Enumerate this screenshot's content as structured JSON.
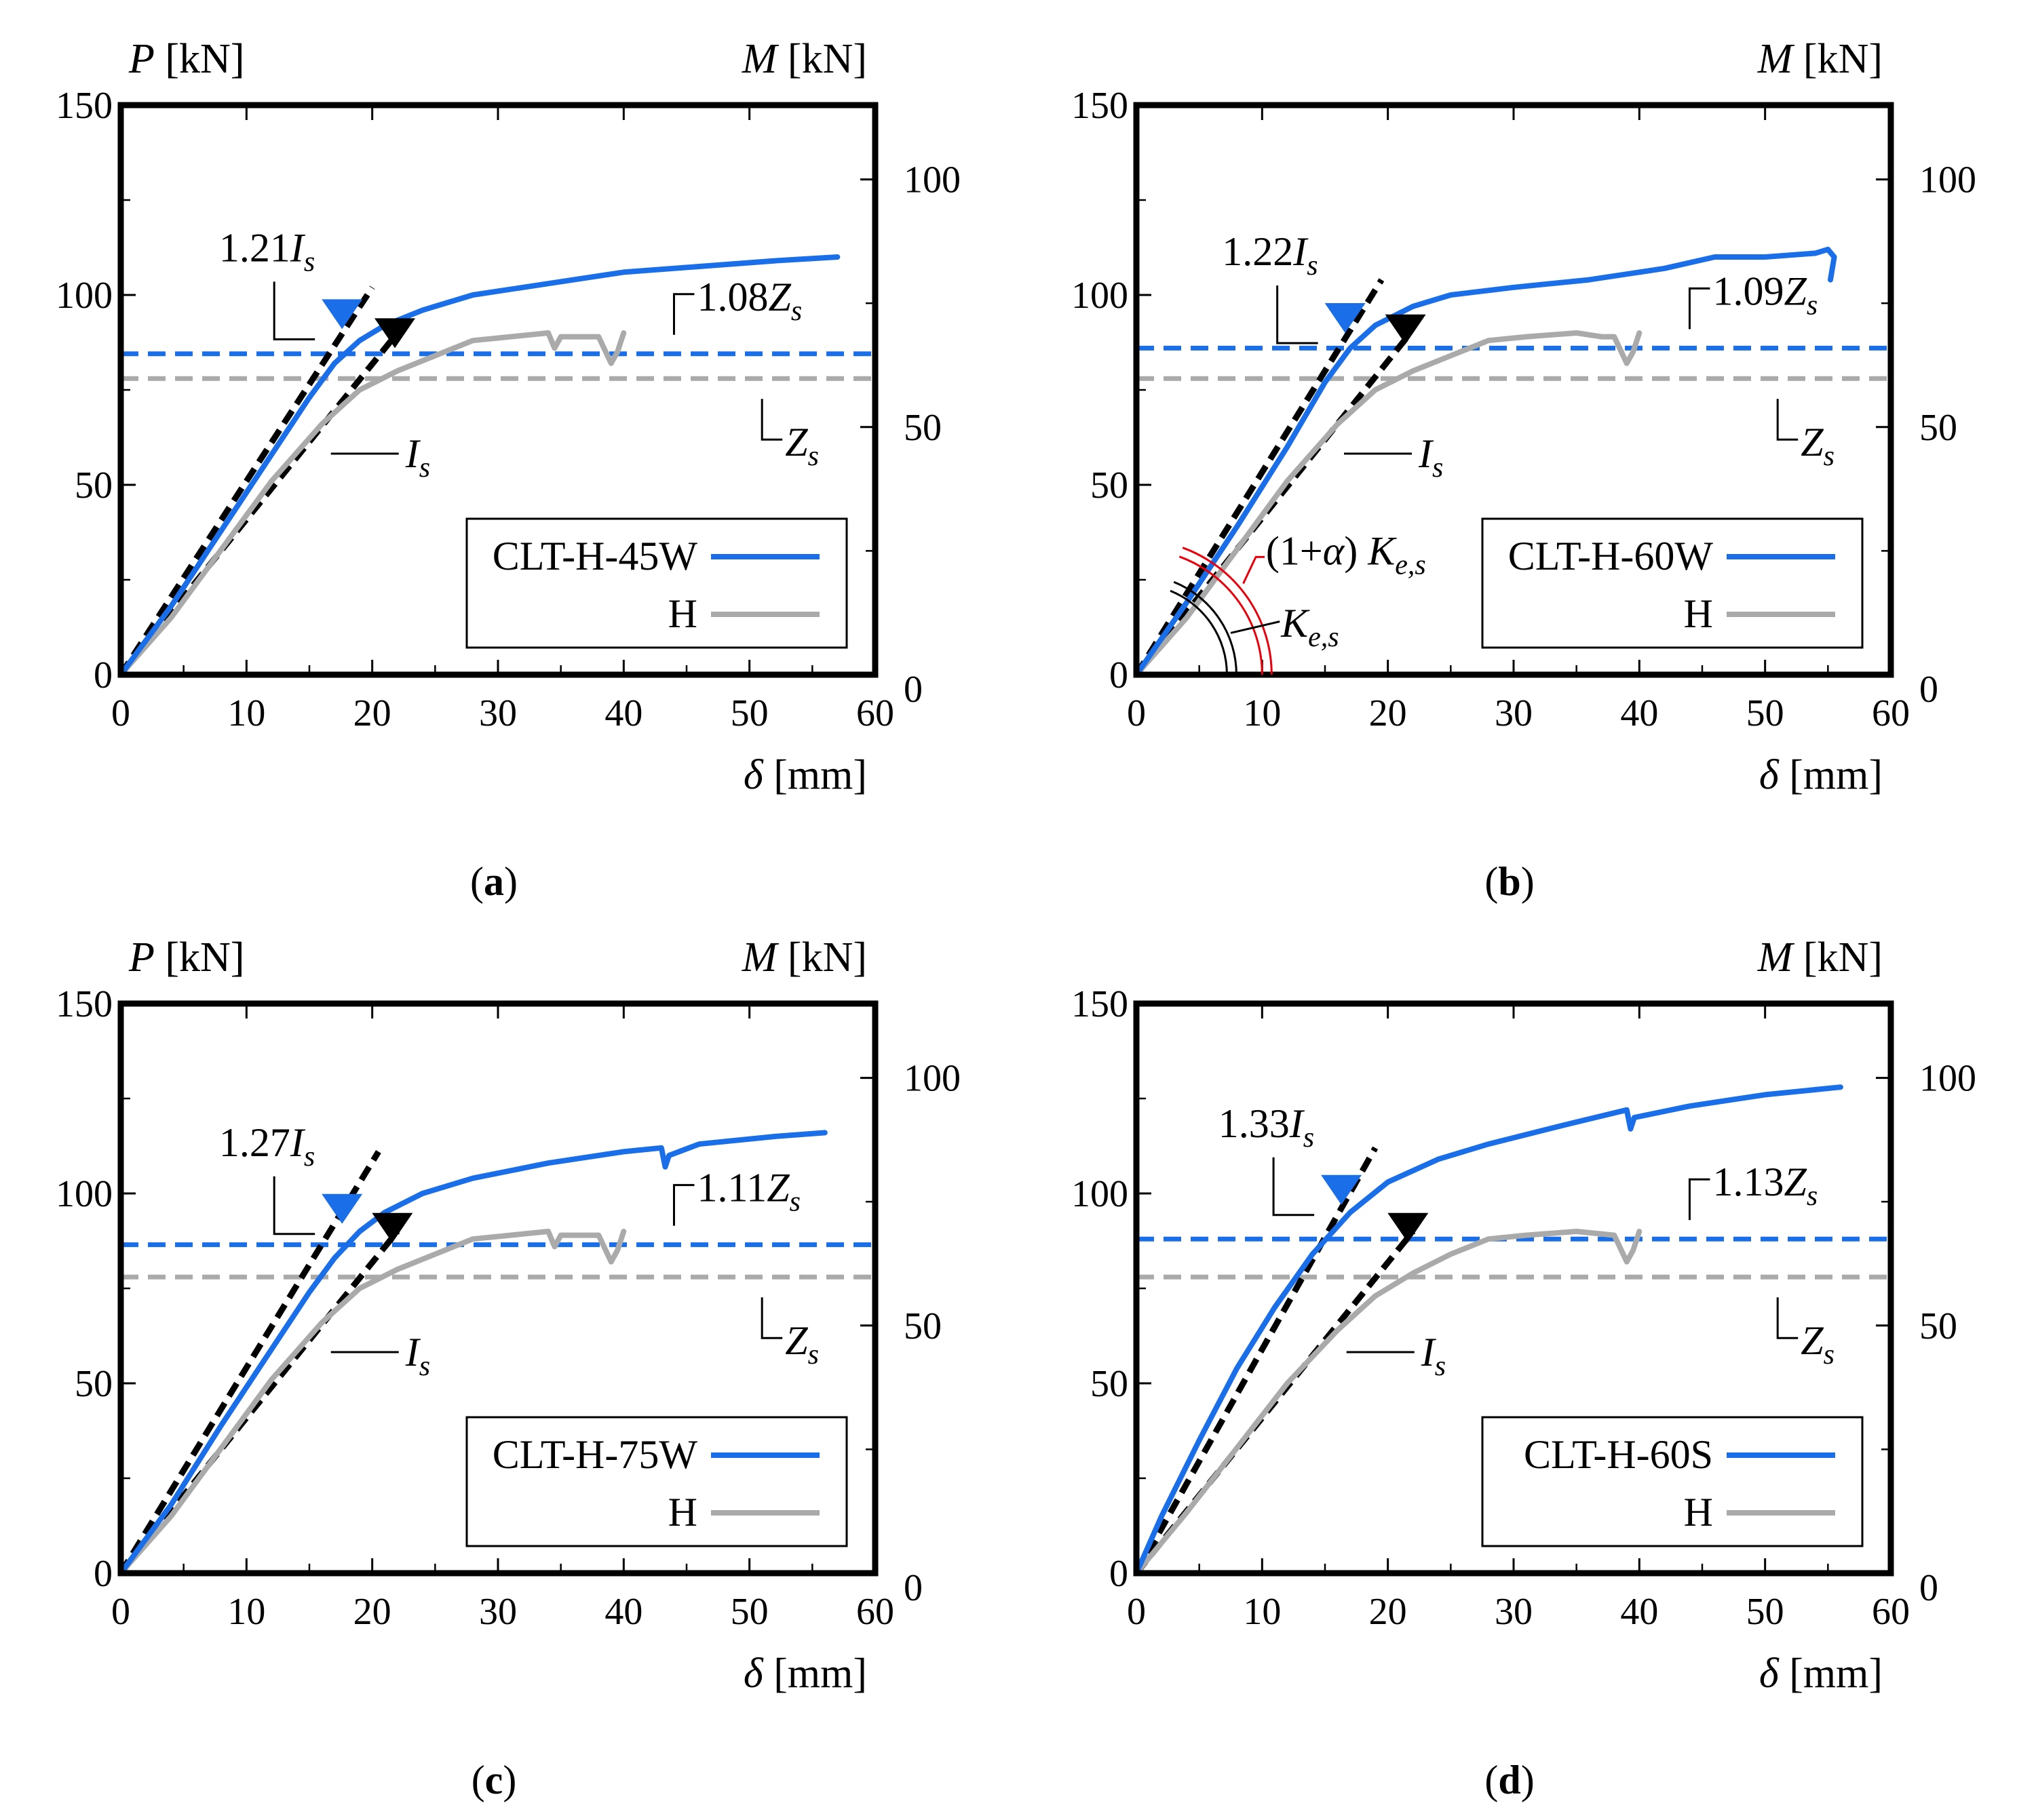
{
  "figure": {
    "panels_layout": "2x2 grid",
    "common": {
      "left_axis": {
        "symbol": "P",
        "unit": "[kN]",
        "range": [
          0,
          150
        ],
        "ticks": [
          0,
          50,
          100,
          150
        ]
      },
      "right_axis": {
        "symbol": "M",
        "unit": "[kN]",
        "range": [
          0,
          115
        ],
        "ticks": [
          0,
          50,
          100
        ]
      },
      "x_axis": {
        "symbol": "δ",
        "unit": "[mm]",
        "range": [
          0,
          60
        ],
        "ticks": [
          0,
          10,
          20,
          30,
          40,
          50,
          60
        ]
      }
    }
  },
  "colors": {
    "test": "#1a6fe8",
    "reference": "#aaaaaa",
    "stiffness": "#000000",
    "k_alpha": "#e8000b"
  },
  "chart_data": [
    {
      "type": "line",
      "panel_label": "(a)",
      "panel_letter": "a",
      "xlabel": "δ [mm]",
      "ylabel": "P [kN]",
      "y2label": "M [kN]",
      "xlim": [
        0,
        60
      ],
      "ylim": [
        0,
        150
      ],
      "y2lim": [
        0,
        115
      ],
      "legend": [
        "CLT-H-45W",
        "H"
      ],
      "legend_position": "lower-right",
      "series": [
        {
          "name": "CLT-H-45W",
          "color": "#1a6fe8",
          "x": [
            0,
            4,
            8,
            12,
            15,
            17,
            19,
            21,
            24,
            28,
            34,
            40,
            46,
            52,
            57
          ],
          "y": [
            0,
            18,
            38,
            58,
            73,
            82,
            88,
            92,
            96,
            100,
            103,
            106,
            107.5,
            109,
            110
          ]
        },
        {
          "name": "H",
          "color": "#aaaaaa",
          "x": [
            0,
            4,
            8,
            12,
            16,
            19,
            22,
            25,
            28,
            31,
            34,
            34.5,
            35,
            38,
            39,
            39.5,
            40
          ],
          "y": [
            0,
            15,
            33,
            51,
            66,
            75,
            80,
            84,
            88,
            89,
            90,
            86,
            89,
            89,
            82,
            85,
            90
          ]
        }
      ],
      "stiffness_lines": [
        {
          "name": "1.21Is",
          "x": [
            0,
            20
          ],
          "y": [
            0,
            102
          ]
        },
        {
          "name": "Is",
          "x": [
            0,
            22
          ],
          "y": [
            0,
            90
          ]
        }
      ],
      "horizontal_lines": [
        {
          "name": "1.08Zs",
          "y": 84.5
        },
        {
          "name": "Zs",
          "y": 78
        }
      ],
      "markers": [
        {
          "color": "blue",
          "x": 17.6,
          "y": 91
        },
        {
          "color": "black",
          "x": 21.8,
          "y": 86
        }
      ],
      "annotations": {
        "test_stiffness": "1.21",
        "test_stiffness_label": "I",
        "ref_stiffness_label": "I",
        "test_strength": "1.08Z",
        "ref_strength": "Z",
        "subscript": "s"
      }
    },
    {
      "type": "line",
      "panel_label": "(b)",
      "panel_letter": "b",
      "xlabel": "δ [mm]",
      "ylabel": "P [kN]",
      "y2label": "M [kN]",
      "xlim": [
        0,
        60
      ],
      "ylim": [
        0,
        150
      ],
      "y2lim": [
        0,
        115
      ],
      "legend": [
        "CLT-H-60W",
        "H"
      ],
      "legend_position": "lower-right",
      "series": [
        {
          "name": "CLT-H-60W",
          "color": "#1a6fe8",
          "x": [
            0,
            4,
            8,
            12,
            15,
            17,
            19,
            22,
            25,
            30,
            36,
            42,
            46,
            50,
            54,
            55,
            55.5,
            55.2
          ],
          "y": [
            0,
            19,
            39,
            60,
            77,
            86,
            92,
            97,
            100,
            102,
            104,
            107,
            110,
            110,
            111,
            112,
            110,
            104
          ]
        },
        {
          "name": "H",
          "color": "#aaaaaa",
          "x": [
            0,
            4,
            8,
            12,
            16,
            19,
            22,
            25,
            28,
            31,
            35,
            37,
            38,
            39,
            39.5,
            40
          ],
          "y": [
            0,
            15,
            33,
            51,
            66,
            75,
            80,
            84,
            88,
            89,
            90,
            89,
            89,
            82,
            85,
            90
          ]
        }
      ],
      "stiffness_lines": [
        {
          "name": "1.22Is",
          "x": [
            0,
            19.5
          ],
          "y": [
            0,
            104
          ]
        },
        {
          "name": "Is",
          "x": [
            0,
            21.8
          ],
          "y": [
            0,
            90
          ]
        }
      ],
      "horizontal_lines": [
        {
          "name": "1.09Zs",
          "y": 86
        },
        {
          "name": "Zs",
          "y": 78
        }
      ],
      "markers": [
        {
          "color": "blue",
          "x": 16.6,
          "y": 90
        },
        {
          "color": "black",
          "x": 21.4,
          "y": 87
        }
      ],
      "annotations": {
        "test_stiffness": "1.22",
        "test_stiffness_label": "I",
        "ref_stiffness_label": "I",
        "test_strength": "1.09Z",
        "ref_strength": "Z",
        "subscript": "s",
        "k_alpha": "(1+α) K",
        "k_alpha_sub": "e,s",
        "k_e": "K",
        "k_e_sub": "e,s"
      }
    },
    {
      "type": "line",
      "panel_label": "(c)",
      "panel_letter": "c",
      "xlabel": "δ [mm]",
      "ylabel": "P [kN]",
      "y2label": "M [kN]",
      "xlim": [
        0,
        60
      ],
      "ylim": [
        0,
        150
      ],
      "y2lim": [
        0,
        115
      ],
      "legend": [
        "CLT-H-75W",
        "H"
      ],
      "legend_position": "lower-right",
      "series": [
        {
          "name": "CLT-H-75W",
          "color": "#1a6fe8",
          "x": [
            0,
            4,
            8,
            12,
            15,
            17,
            19,
            21,
            24,
            28,
            34,
            40,
            43,
            43.3,
            43.6,
            46,
            52,
            56
          ],
          "y": [
            0,
            18,
            39,
            59,
            74,
            83,
            90,
            95,
            100,
            104,
            108,
            111,
            112,
            107,
            110,
            113,
            115,
            116
          ]
        },
        {
          "name": "H",
          "color": "#aaaaaa",
          "x": [
            0,
            4,
            8,
            12,
            16,
            19,
            22,
            25,
            28,
            31,
            34,
            34.5,
            35,
            38,
            39,
            39.5,
            40
          ],
          "y": [
            0,
            15,
            33,
            51,
            66,
            75,
            80,
            84,
            88,
            89,
            90,
            86,
            89,
            89,
            82,
            85,
            90
          ]
        }
      ],
      "stiffness_lines": [
        {
          "name": "1.27Is",
          "x": [
            0,
            20.5
          ],
          "y": [
            0,
            111
          ]
        },
        {
          "name": "Is",
          "x": [
            0,
            22
          ],
          "y": [
            0,
            90
          ]
        }
      ],
      "horizontal_lines": [
        {
          "name": "1.11Zs",
          "y": 86.5
        },
        {
          "name": "Zs",
          "y": 78
        }
      ],
      "markers": [
        {
          "color": "blue",
          "x": 17.6,
          "y": 92
        },
        {
          "color": "black",
          "x": 21.6,
          "y": 87
        }
      ],
      "annotations": {
        "test_stiffness": "1.27",
        "test_stiffness_label": "I",
        "ref_stiffness_label": "I",
        "test_strength": "1.11Z",
        "ref_strength": "Z",
        "subscript": "s"
      }
    },
    {
      "type": "line",
      "panel_label": "(d)",
      "panel_letter": "d",
      "xlabel": "δ [mm]",
      "ylabel": "P [kN]",
      "y2label": "M [kN]",
      "xlim": [
        0,
        60
      ],
      "ylim": [
        0,
        150
      ],
      "y2lim": [
        0,
        115
      ],
      "legend": [
        "CLT-H-60S",
        "H"
      ],
      "legend_position": "lower-right",
      "series": [
        {
          "name": "CLT-H-60S",
          "color": "#1a6fe8",
          "x": [
            0,
            2,
            5,
            8,
            11,
            14,
            17,
            20,
            24,
            28,
            34,
            39,
            39.3,
            39.6,
            44,
            50,
            56
          ],
          "y": [
            0,
            15,
            35,
            54,
            70,
            84,
            95,
            103,
            109,
            113,
            118,
            122,
            117,
            120,
            123,
            126,
            128
          ]
        },
        {
          "name": "H",
          "color": "#aaaaaa",
          "x": [
            0,
            4,
            8,
            12,
            16,
            19,
            22,
            25,
            28,
            31,
            35,
            38,
            39,
            39.5,
            40
          ],
          "y": [
            0,
            16,
            33,
            50,
            64,
            73,
            79,
            84,
            88,
            89,
            90,
            89,
            82,
            85,
            90
          ]
        }
      ],
      "stiffness_lines": [
        {
          "name": "1.33Is",
          "x": [
            0,
            19
          ],
          "y": [
            0,
            112
          ]
        },
        {
          "name": "Is",
          "x": [
            0,
            22
          ],
          "y": [
            0,
            90
          ]
        }
      ],
      "horizontal_lines": [
        {
          "name": "1.13Zs",
          "y": 88
        },
        {
          "name": "Zs",
          "y": 78
        }
      ],
      "markers": [
        {
          "color": "blue",
          "x": 16.3,
          "y": 97
        },
        {
          "color": "black",
          "x": 21.6,
          "y": 87
        }
      ],
      "annotations": {
        "test_stiffness": "1.33",
        "test_stiffness_label": "I",
        "ref_stiffness_label": "I",
        "test_strength": "1.13Z",
        "ref_strength": "Z",
        "subscript": "s"
      }
    }
  ]
}
